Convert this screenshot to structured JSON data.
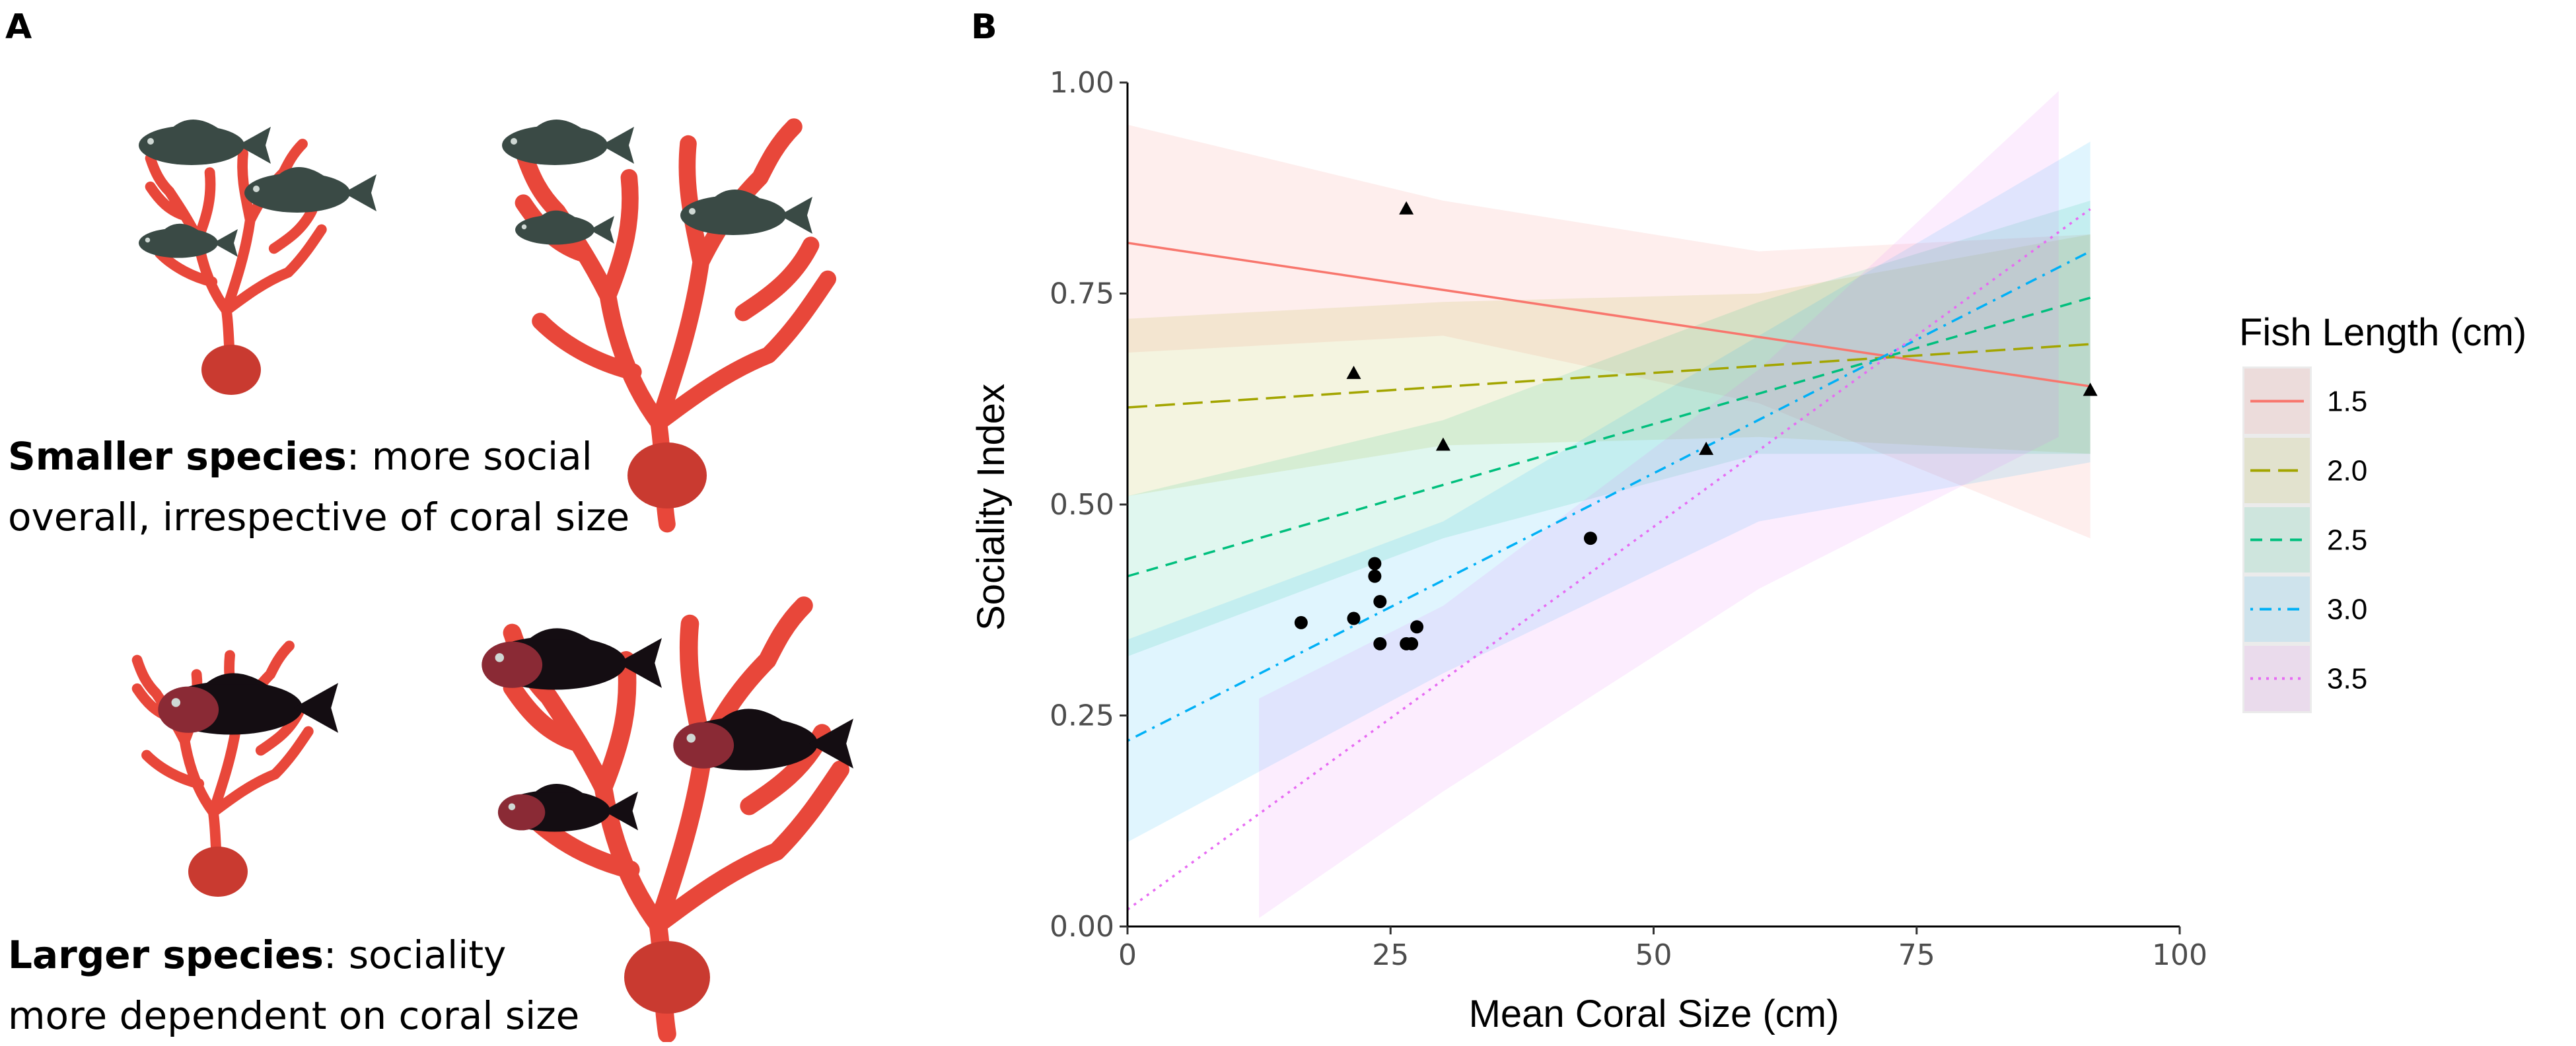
{
  "panel_a": {
    "letter": "A",
    "small_caption": {
      "bold": "Smaller species",
      "line1_rest": ": more social",
      "line2": "overall, irrespective of coral size"
    },
    "large_caption": {
      "bold": "Larger species",
      "line1_rest": ": sociality",
      "line2": "more dependent on coral size"
    },
    "colors": {
      "coral": "#e8473a",
      "coral_dark": "#c93a30",
      "small_fish": "#3a4a45",
      "large_fish": "#140d12",
      "large_fish_head": "#8a2a35"
    }
  },
  "chart_data": {
    "type": "scatter",
    "panel_letter": "B",
    "xlabel": "Mean Coral Size (cm)",
    "ylabel": "Sociality Index",
    "xlim": [
      0,
      100
    ],
    "ylim": [
      0,
      1
    ],
    "x_ticks": [
      0,
      25,
      50,
      75,
      100
    ],
    "x_tick_labels": [
      "0",
      "25",
      "50",
      "75",
      "100"
    ],
    "y_ticks": [
      0,
      0.25,
      0.5,
      0.75,
      1
    ],
    "y_tick_labels": [
      "0.00",
      "0.25",
      "0.50",
      "0.75",
      "1.00"
    ],
    "grid": false,
    "legend": {
      "title": "Fish Length (cm)",
      "position": "right",
      "entries": [
        "1.5",
        "2.0",
        "2.5",
        "3.0",
        "3.5"
      ]
    },
    "series": [
      {
        "name": "1.5",
        "color": "#f8766d",
        "dash": "solid",
        "x": [
          0,
          91.5
        ],
        "y": [
          0.81,
          0.64
        ],
        "ci_x": [
          0,
          30,
          60,
          91.5
        ],
        "ci_lower": [
          0.68,
          0.7,
          0.62,
          0.46
        ],
        "ci_upper": [
          0.95,
          0.86,
          0.8,
          0.82
        ]
      },
      {
        "name": "2.0",
        "color": "#a3a500",
        "dash": "longdash",
        "x": [
          0,
          91.5
        ],
        "y": [
          0.615,
          0.69
        ],
        "ci_x": [
          0,
          30,
          60,
          91.5
        ],
        "ci_lower": [
          0.51,
          0.57,
          0.58,
          0.56
        ],
        "ci_upper": [
          0.72,
          0.74,
          0.75,
          0.82
        ]
      },
      {
        "name": "2.5",
        "color": "#00bf7d",
        "dash": "dashed",
        "x": [
          0,
          91.5
        ],
        "y": [
          0.415,
          0.745
        ],
        "ci_x": [
          0,
          30,
          60,
          91.5
        ],
        "ci_lower": [
          0.32,
          0.46,
          0.56,
          0.56
        ],
        "ci_upper": [
          0.51,
          0.6,
          0.74,
          0.86
        ]
      },
      {
        "name": "3.0",
        "color": "#00b0f6",
        "dash": "dotdash",
        "x": [
          0,
          91.5
        ],
        "y": [
          0.22,
          0.8
        ],
        "ci_x": [
          0,
          30,
          60,
          91.5
        ],
        "ci_lower": [
          0.1,
          0.3,
          0.48,
          0.55
        ],
        "ci_upper": [
          0.34,
          0.48,
          0.7,
          0.93
        ]
      },
      {
        "name": "3.5",
        "color": "#e76bf3",
        "dash": "dotted",
        "x": [
          0,
          91.5
        ],
        "y": [
          0.02,
          0.85
        ],
        "ci_x": [
          12.5,
          30,
          60,
          88.5
        ],
        "ci_lower": [
          0.01,
          0.16,
          0.4,
          0.58
        ],
        "ci_upper": [
          0.27,
          0.38,
          0.66,
          0.99
        ]
      }
    ],
    "points_triangle": [
      {
        "x": 26.5,
        "y": 0.85
      },
      {
        "x": 21.5,
        "y": 0.655
      },
      {
        "x": 30.0,
        "y": 0.57
      },
      {
        "x": 55.0,
        "y": 0.565
      },
      {
        "x": 91.5,
        "y": 0.635
      }
    ],
    "points_circle": [
      {
        "x": 16.5,
        "y": 0.36
      },
      {
        "x": 21.5,
        "y": 0.365
      },
      {
        "x": 23.5,
        "y": 0.43
      },
      {
        "x": 23.5,
        "y": 0.415
      },
      {
        "x": 24.0,
        "y": 0.385
      },
      {
        "x": 24.0,
        "y": 0.335
      },
      {
        "x": 26.5,
        "y": 0.335
      },
      {
        "x": 27.0,
        "y": 0.335
      },
      {
        "x": 27.5,
        "y": 0.355
      },
      {
        "x": 44.0,
        "y": 0.46
      }
    ]
  }
}
